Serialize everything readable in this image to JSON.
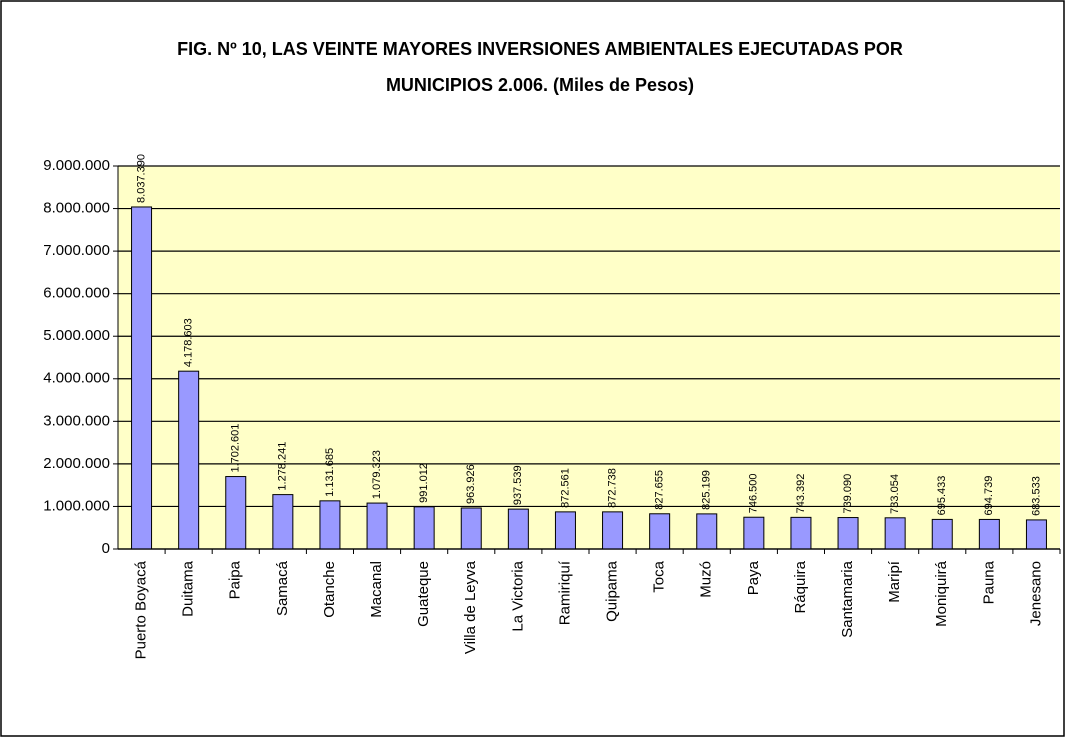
{
  "chart_data": {
    "type": "bar",
    "title": [
      "FIG. Nº 10, LAS VEINTE MAYORES INVERSIONES AMBIENTALES EJECUTADAS POR",
      "MUNICIPIOS 2.006. (Miles de Pesos)"
    ],
    "categories": [
      "Puerto Boyacá",
      "Duitama",
      "Paipa",
      "Samacá",
      "Otanche",
      "Macanal",
      "Guateque",
      "Villa de Leyva",
      "La Victoria",
      "Ramiriquí",
      "Quipama",
      "Toca",
      "Muzó",
      "Paya",
      "Ráquira",
      "Santamaria",
      "Maripí",
      "Moniquirá",
      "Pauna",
      "Jenesano"
    ],
    "values": [
      8037390,
      4178603,
      1702601,
      1278241,
      1131685,
      1079323,
      991012,
      963926,
      937539,
      872561,
      872738,
      827655,
      825199,
      746500,
      743392,
      739090,
      733054,
      695433,
      694739,
      683533
    ],
    "value_labels": [
      "8.037.390",
      "4.178.603",
      "1.702.601",
      "1.278.241",
      "1.131.685",
      "1.079.323",
      "991.012",
      "963.926",
      "937.539",
      "872.561",
      "872.738",
      "827.655",
      "825.199",
      "746.500",
      "743.392",
      "739.090",
      "733.054",
      "695.433",
      "694.739",
      "683.533"
    ],
    "color": "#9999ff",
    "ylim": [
      0,
      9000000
    ],
    "yticks": [
      0,
      {
        "value": 1000000,
        "label": "1.000.000"
      },
      {
        "value": 2000000,
        "label": "2.000.000"
      },
      {
        "value": 3000000,
        "label": "3.000.000"
      },
      {
        "value": 4000000,
        "label": "4.000.000"
      },
      {
        "value": 5000000,
        "label": "5.000.000"
      },
      {
        "value": 6000000,
        "label": "6.000.000"
      },
      {
        "value": 7000000,
        "label": "7.000.000"
      },
      {
        "value": 8000000,
        "label": "8.000.000"
      },
      {
        "value": 9000000,
        "label": "9.000.000"
      }
    ],
    "grid": true
  }
}
